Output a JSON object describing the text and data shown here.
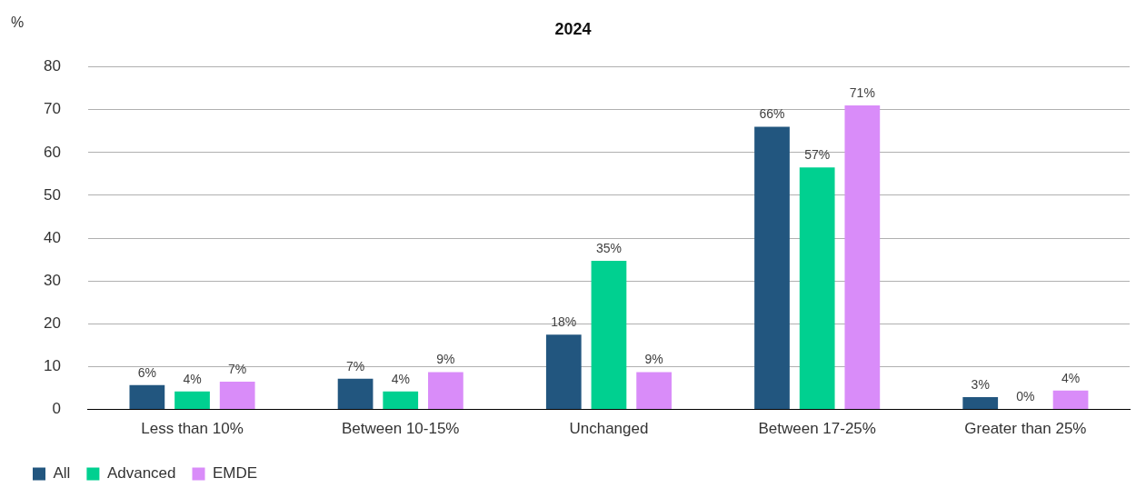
{
  "chart_data": {
    "type": "bar",
    "title": "2024",
    "ylabel": "%",
    "categories": [
      "Less than 10%",
      "Between 10-15%",
      "Unchanged",
      "Between 17-25%",
      "Greater than 25%"
    ],
    "series": [
      {
        "name": "All",
        "color": "#22567f",
        "values": [
          5.7,
          7.2,
          17.5,
          66,
          2.9
        ],
        "value_labels": [
          "6%",
          "7%",
          "18%",
          "66%",
          "3%"
        ]
      },
      {
        "name": "Advanced",
        "color": "#00d090",
        "values": [
          4.2,
          4.2,
          34.7,
          56.5,
          0
        ],
        "value_labels": [
          "4%",
          "4%",
          "35%",
          "57%",
          "0%"
        ]
      },
      {
        "name": "EMDE",
        "color": "#d98cf9",
        "values": [
          6.5,
          8.7,
          8.7,
          71,
          4.4
        ],
        "value_labels": [
          "7%",
          "9%",
          "9%",
          "71%",
          "4%"
        ]
      }
    ],
    "ylim": [
      0,
      80
    ],
    "yticks": [
      0,
      10,
      20,
      30,
      40,
      50,
      60,
      70,
      80
    ],
    "grid": "y",
    "legend": "bottom left"
  }
}
